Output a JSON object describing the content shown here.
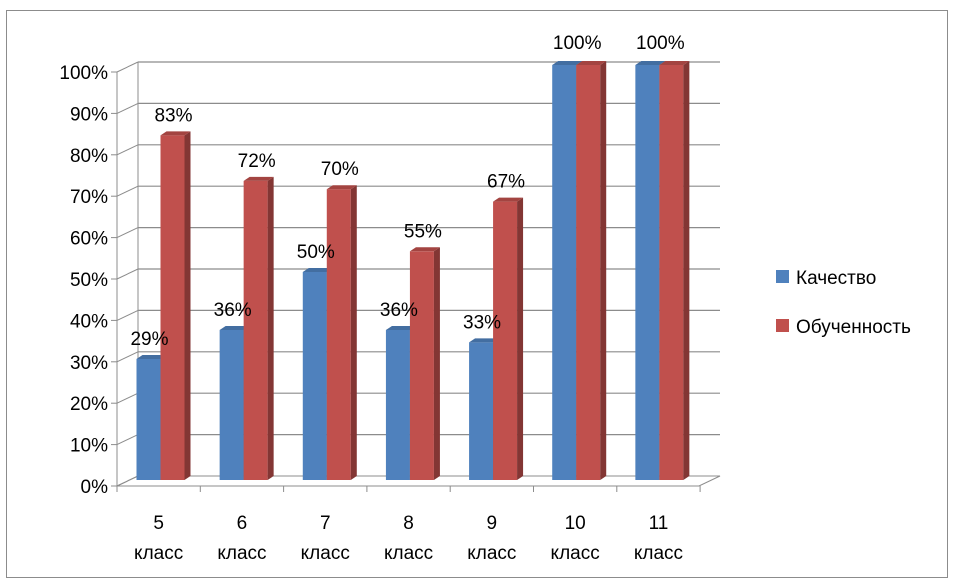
{
  "chart_data": {
    "type": "bar",
    "title": "",
    "xlabel": "",
    "ylabel": "",
    "categories": [
      [
        "5",
        "класс"
      ],
      [
        "6",
        "класс"
      ],
      [
        "7",
        "класс"
      ],
      [
        "8",
        "класс"
      ],
      [
        "9",
        "класс"
      ],
      [
        "10",
        "класс"
      ],
      [
        "11",
        "класс"
      ]
    ],
    "series": [
      {
        "name": "Качество",
        "values": [
          29,
          36,
          50,
          36,
          33,
          100,
          100
        ],
        "color": "#4f81bd"
      },
      {
        "name": "Обученность",
        "values": [
          83,
          72,
          70,
          55,
          67,
          100,
          100
        ],
        "color": "#c0504d"
      }
    ],
    "data_labels": [
      {
        "category_index": 0,
        "text": "29%"
      },
      {
        "category_index": 0,
        "text": "83%"
      },
      {
        "category_index": 1,
        "text": "36%"
      },
      {
        "category_index": 1,
        "text": "72%"
      },
      {
        "category_index": 2,
        "text": "50%"
      },
      {
        "category_index": 2,
        "text": "70%"
      },
      {
        "category_index": 3,
        "text": "36%"
      },
      {
        "category_index": 3,
        "text": "55%"
      },
      {
        "category_index": 4,
        "text": "33%"
      },
      {
        "category_index": 4,
        "text": "67%"
      },
      {
        "category_index": 5,
        "text": "100%"
      },
      {
        "category_index": 6,
        "text": "100%"
      }
    ],
    "y_ticks": [
      "0%",
      "10%",
      "20%",
      "30%",
      "40%",
      "50%",
      "60%",
      "70%",
      "80%",
      "90%",
      "100%"
    ],
    "ylim": [
      0,
      100
    ],
    "grid": true,
    "legend_position": "right",
    "style": "3d-column"
  }
}
